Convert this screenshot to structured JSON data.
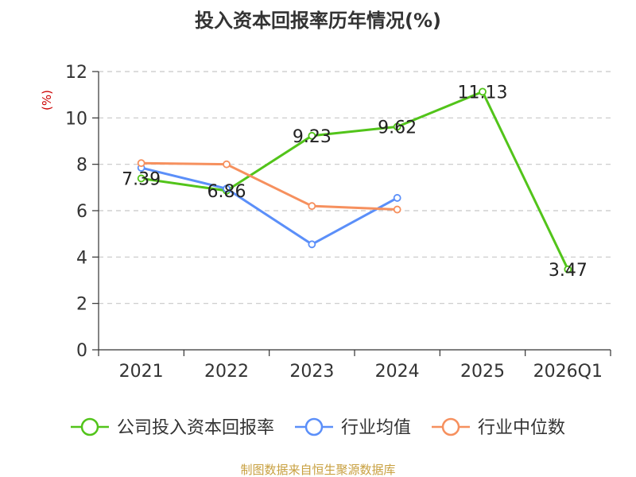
{
  "chart_data": {
    "type": "line",
    "title": "投入资本回报率历年情况(%)",
    "ylabel": "(%)",
    "ylabel_color": "#cc0000",
    "xlabel": "",
    "categories": [
      "2021",
      "2022",
      "2023",
      "2024",
      "2025",
      "2026Q1"
    ],
    "ylim": [
      0,
      12
    ],
    "yticks": [
      0,
      2,
      4,
      6,
      8,
      10,
      12
    ],
    "grid": true,
    "legend_position": "bottom",
    "series": [
      {
        "name": "公司投入资本回报率",
        "color": "#52c41a",
        "values": [
          7.39,
          6.86,
          9.23,
          9.62,
          11.13,
          3.47
        ],
        "labels": [
          "7.39",
          "6.86",
          "9.23",
          "9.62",
          "11.13",
          "3.47"
        ]
      },
      {
        "name": "行业均值",
        "color": "#5b8ff9",
        "values": [
          7.85,
          6.95,
          4.55,
          6.55,
          null,
          null
        ]
      },
      {
        "name": "行业中位数",
        "color": "#f6905e",
        "values": [
          8.05,
          8.0,
          6.2,
          6.05,
          null,
          null
        ]
      }
    ]
  },
  "source": {
    "text": "制图数据来自恒生聚源数据库",
    "color": "#c8a040"
  }
}
